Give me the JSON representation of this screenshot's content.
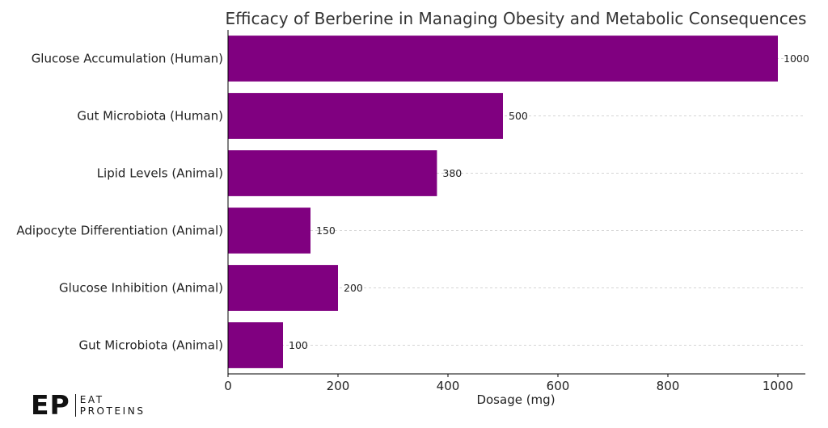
{
  "chart_data": {
    "type": "bar",
    "orientation": "horizontal",
    "title": "Efficacy of Berberine in Managing Obesity and Metabolic Consequences",
    "xlabel": "Dosage (mg)",
    "ylabel": "",
    "categories": [
      "Glucose Accumulation (Human)",
      "Gut Microbiota (Human)",
      "Lipid Levels (Animal)",
      "Adipocyte Differentiation (Animal)",
      "Glucose Inhibition (Animal)",
      "Gut Microbiota (Animal)"
    ],
    "values": [
      1000,
      500,
      380,
      150,
      200,
      100
    ],
    "xlim": [
      0,
      1050
    ],
    "xticks": [
      0,
      200,
      400,
      600,
      800,
      1000
    ],
    "grid": "x-dashed",
    "bar_color": "#800080",
    "data_labels": true
  },
  "brand": {
    "mark": "EP",
    "line1": "EAT",
    "line2": "PROTEINS"
  }
}
